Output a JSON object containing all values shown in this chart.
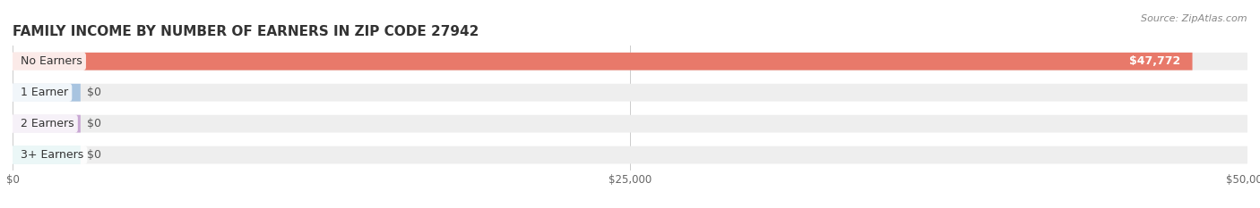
{
  "title": "FAMILY INCOME BY NUMBER OF EARNERS IN ZIP CODE 27942",
  "source": "Source: ZipAtlas.com",
  "categories": [
    "No Earners",
    "1 Earner",
    "2 Earners",
    "3+ Earners"
  ],
  "values": [
    47772,
    0,
    0,
    0
  ],
  "bar_colors": [
    "#e8796a",
    "#a8c4e0",
    "#c9a8d4",
    "#7ecfcf"
  ],
  "label_colors": [
    "#e8796a",
    "#a8c4e0",
    "#c9a8d4",
    "#7ecfcf"
  ],
  "background_color": "#ffffff",
  "bar_bg_color": "#eeeeee",
  "xlim": [
    0,
    50000
  ],
  "xticks": [
    0,
    25000,
    50000
  ],
  "xtick_labels": [
    "$0",
    "$25,000",
    "$50,000"
  ],
  "value_labels": [
    "$47,772",
    "$0",
    "$0",
    "$0"
  ],
  "title_fontsize": 11,
  "label_fontsize": 9,
  "tick_fontsize": 8.5,
  "source_fontsize": 8,
  "bar_height": 0.55
}
